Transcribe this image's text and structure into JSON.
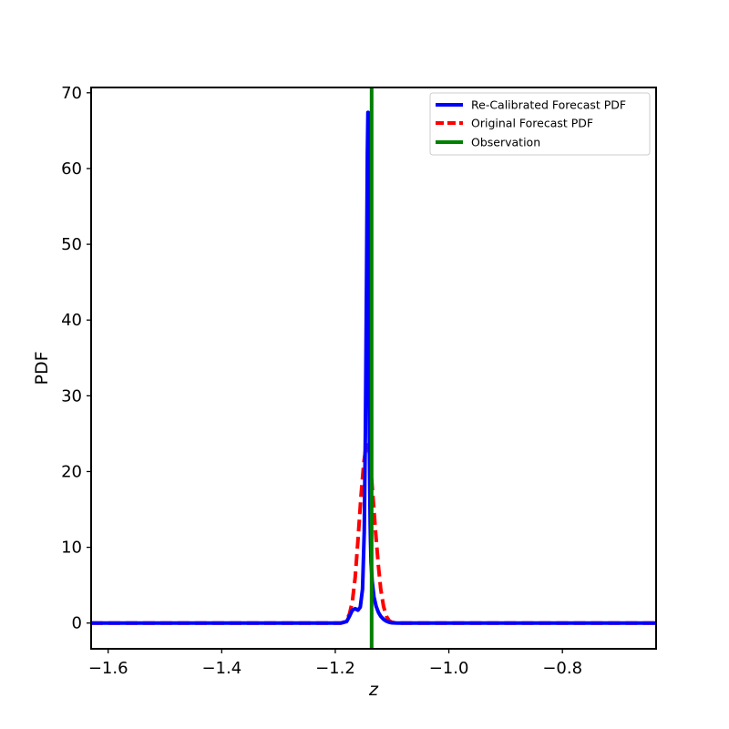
{
  "chart_data": {
    "type": "line",
    "title": "",
    "xlabel": "z",
    "ylabel": "PDF",
    "xlim": [
      -1.63,
      -0.635
    ],
    "ylim": [
      -3.4,
      70.7
    ],
    "xticks": [
      -1.6,
      -1.4,
      -1.2,
      -1.0,
      -0.8
    ],
    "xtick_labels": [
      "−1.6",
      "−1.4",
      "−1.2",
      "−1.0",
      "−0.8"
    ],
    "yticks": [
      0,
      10,
      20,
      30,
      40,
      50,
      60,
      70
    ],
    "ytick_labels": [
      "0",
      "10",
      "20",
      "30",
      "40",
      "50",
      "60",
      "70"
    ],
    "grid": false,
    "legend_position": "top-right",
    "series": [
      {
        "name": "Re-Calibrated Forecast PDF",
        "color": "#0000ff",
        "style": "solid",
        "x": [
          -1.63,
          -1.19,
          -1.18,
          -1.175,
          -1.17,
          -1.165,
          -1.16,
          -1.156,
          -1.152,
          -1.149,
          -1.147,
          -1.145,
          -1.1435,
          -1.1425,
          -1.142,
          -1.1415,
          -1.141,
          -1.1405,
          -1.14,
          -1.1395,
          -1.139,
          -1.1385,
          -1.138,
          -1.137,
          -1.135,
          -1.132,
          -1.128,
          -1.124,
          -1.12,
          -1.115,
          -1.11,
          -1.105,
          -1.1,
          -1.09,
          -1.08,
          -0.635
        ],
        "y": [
          0,
          0,
          0.2,
          0.9,
          1.7,
          1.9,
          1.7,
          2.1,
          4.5,
          12,
          25,
          45,
          62,
          67.4,
          67.4,
          60,
          45,
          33,
          25,
          20,
          16,
          13,
          11,
          8,
          5.5,
          3.5,
          2.2,
          1.4,
          0.9,
          0.5,
          0.25,
          0.1,
          0.03,
          0,
          0,
          0
        ]
      },
      {
        "name": "Original Forecast PDF",
        "color": "#ff0000",
        "style": "dashed",
        "x": [
          -1.63,
          -1.19,
          -1.185,
          -1.18,
          -1.175,
          -1.17,
          -1.165,
          -1.16,
          -1.155,
          -1.15,
          -1.146,
          -1.143,
          -1.14,
          -1.137,
          -1.133,
          -1.129,
          -1.124,
          -1.12,
          -1.115,
          -1.11,
          -1.105,
          -1.1,
          -1.095,
          -1.09,
          -0.635
        ],
        "y": [
          0,
          0,
          0.1,
          0.4,
          1.2,
          2.8,
          6,
          11,
          16.5,
          21,
          23.3,
          23.5,
          22.5,
          20,
          16,
          12,
          7.5,
          4.5,
          2.2,
          0.9,
          0.3,
          0.1,
          0.03,
          0,
          0
        ]
      }
    ],
    "vlines": [
      {
        "name": "Observation",
        "x": -1.136,
        "color": "#008000"
      }
    ]
  }
}
